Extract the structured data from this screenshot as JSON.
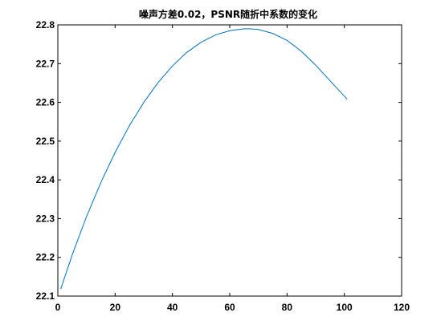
{
  "chart_data": {
    "type": "line",
    "title": "噪声方差0.02，PSNR随折中系数的变化",
    "xlabel": "",
    "ylabel": "",
    "xlim": [
      0,
      120
    ],
    "ylim": [
      22.1,
      22.8
    ],
    "xticks": [
      "0",
      "20",
      "40",
      "60",
      "80",
      "100",
      "120"
    ],
    "yticks": [
      "22.1",
      "22.2",
      "22.3",
      "22.4",
      "22.5",
      "22.6",
      "22.7",
      "22.8"
    ],
    "grid": false,
    "legend": "none",
    "series": [
      {
        "color": "#0072BD",
        "x": [
          1,
          5,
          10,
          15,
          20,
          25,
          30,
          35,
          40,
          45,
          50,
          55,
          60,
          65,
          67,
          70,
          75,
          80,
          85,
          90,
          95,
          101
        ],
        "y": [
          22.118,
          22.206,
          22.305,
          22.393,
          22.471,
          22.54,
          22.6,
          22.651,
          22.694,
          22.729,
          22.755,
          22.774,
          22.785,
          22.79,
          22.79,
          22.788,
          22.778,
          22.76,
          22.732,
          22.696,
          22.656,
          22.608
        ]
      }
    ]
  }
}
